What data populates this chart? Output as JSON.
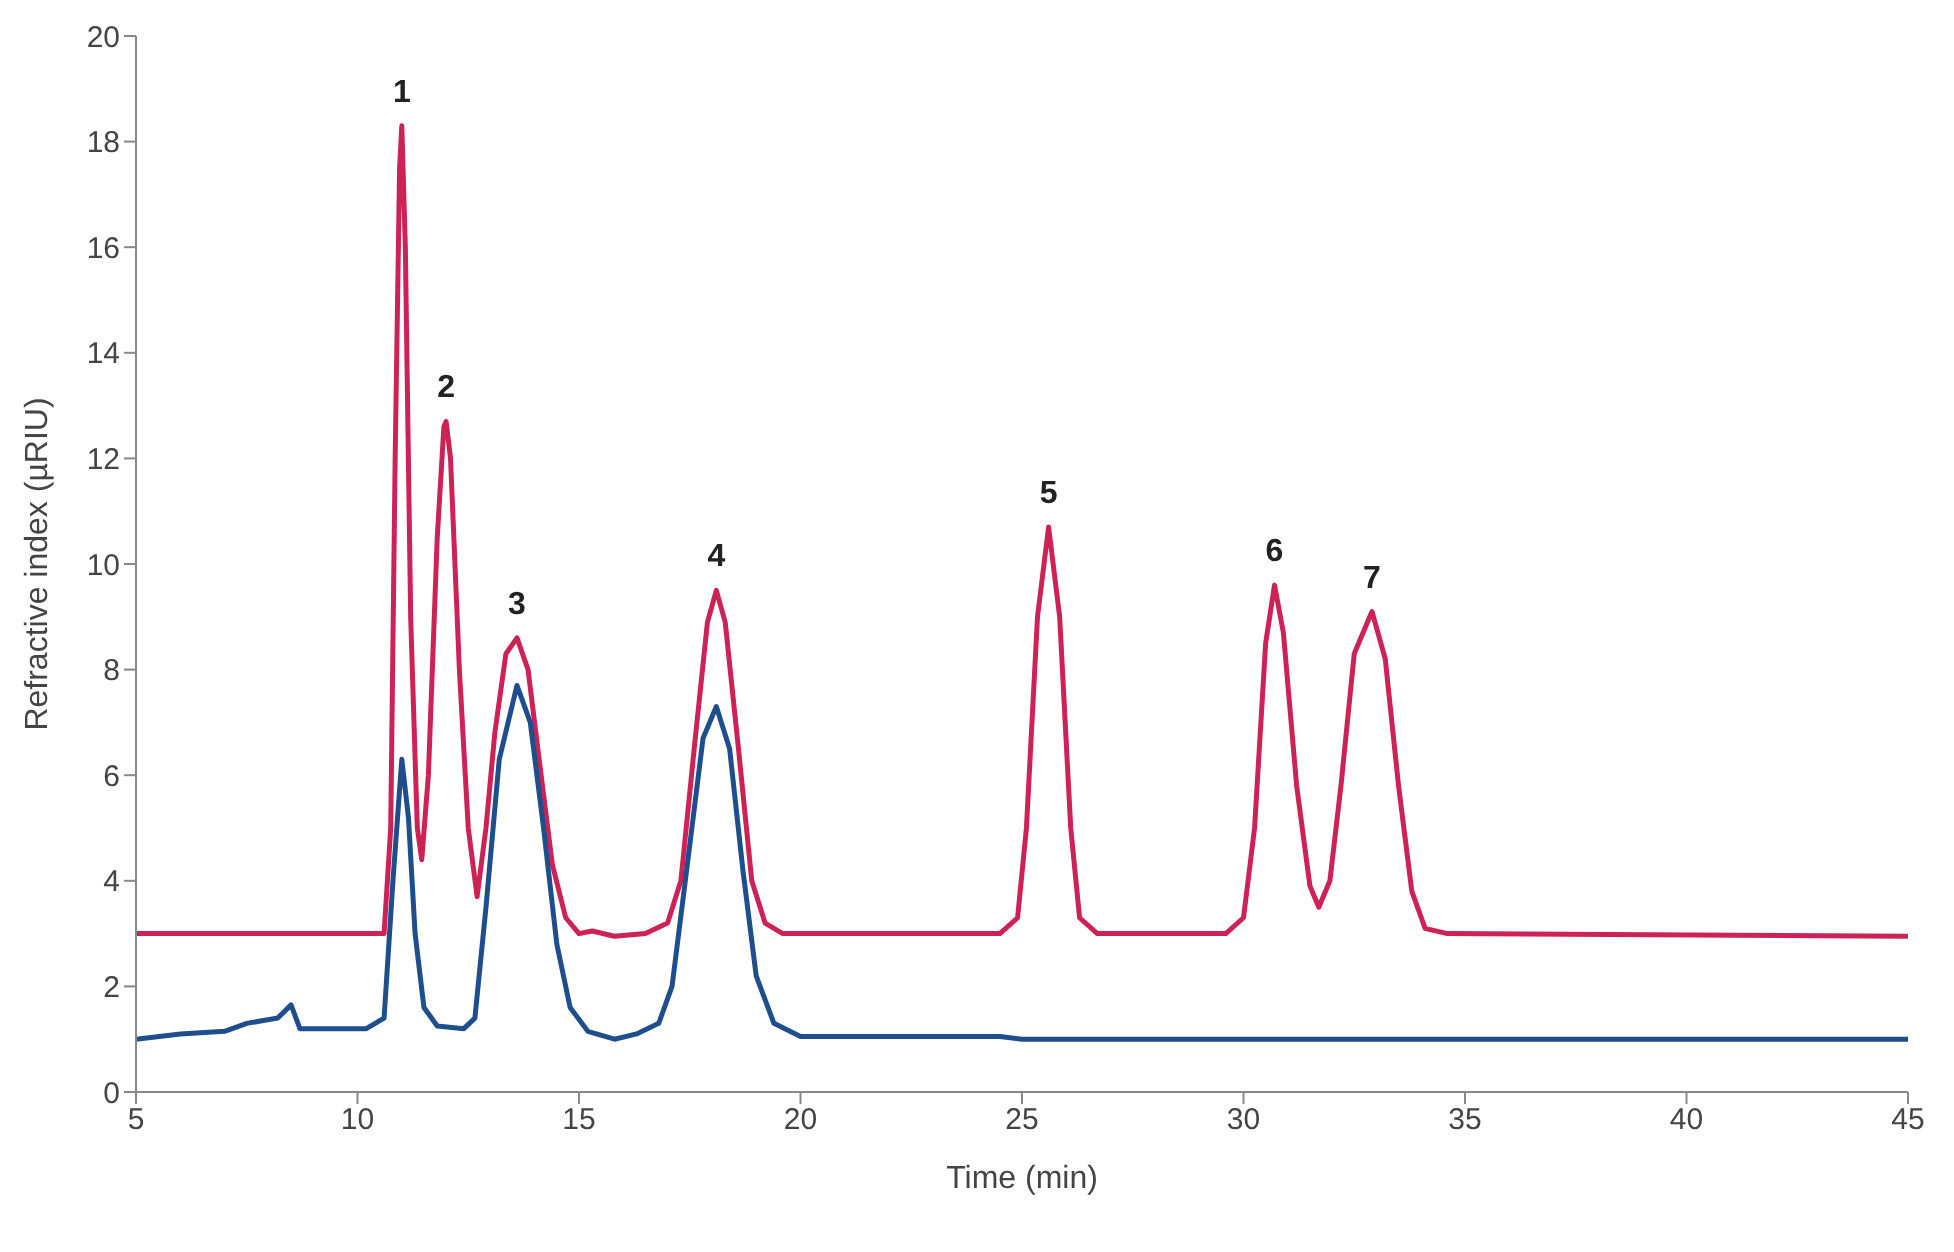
{
  "chart_data": {
    "type": "line",
    "xlabel": "Time (min)",
    "ylabel": "Refractive index (µRIU)",
    "xlim": [
      5,
      45
    ],
    "xticks": [
      5,
      10,
      15,
      20,
      25,
      30,
      35,
      40,
      45
    ],
    "ylim": [
      0,
      20
    ],
    "yticks": [
      0,
      2,
      4,
      6,
      8,
      10,
      12,
      14,
      16,
      18,
      20
    ],
    "line_style": "solid",
    "series": [
      {
        "color": "#cc2255",
        "x": [
          5,
          10.6,
          10.75,
          10.85,
          10.95,
          11.0,
          11.08,
          11.2,
          11.35,
          11.45,
          11.6,
          11.8,
          11.95,
          12.0,
          12.1,
          12.3,
          12.5,
          12.7,
          12.9,
          13.1,
          13.35,
          13.6,
          13.85,
          14.1,
          14.4,
          14.7,
          15,
          15.3,
          15.8,
          16.5,
          17,
          17.3,
          17.6,
          17.9,
          18.1,
          18.3,
          18.6,
          18.9,
          19.2,
          19.6,
          24.5,
          24.9,
          25.1,
          25.35,
          25.6,
          25.85,
          26.1,
          26.3,
          26.7,
          29.6,
          30.0,
          30.25,
          30.5,
          30.7,
          30.9,
          31.2,
          31.5,
          31.7,
          31.95,
          32.2,
          32.5,
          32.9,
          33.2,
          33.5,
          33.8,
          34.1,
          34.6,
          45
        ],
        "values": [
          3,
          3,
          5,
          12,
          17.5,
          18.3,
          16,
          9,
          5,
          4.4,
          6,
          10.5,
          12.6,
          12.7,
          12,
          8,
          5,
          3.7,
          5,
          6.8,
          8.3,
          8.6,
          8,
          6.3,
          4.3,
          3.3,
          3.0,
          3.05,
          2.95,
          3,
          3.2,
          4,
          6.5,
          8.9,
          9.5,
          8.9,
          6.5,
          4,
          3.2,
          3.0,
          3,
          3.3,
          5,
          9,
          10.7,
          9,
          5,
          3.3,
          3.0,
          3,
          3.3,
          5,
          8.5,
          9.6,
          8.7,
          5.8,
          3.9,
          3.5,
          4,
          5.8,
          8.3,
          9.1,
          8.2,
          5.8,
          3.8,
          3.1,
          3.0,
          2.95
        ]
      },
      {
        "color": "#1f4e8c",
        "x": [
          5,
          6,
          7,
          7.5,
          8.2,
          8.5,
          8.7,
          10.2,
          10.6,
          10.8,
          11.0,
          11.15,
          11.3,
          11.5,
          11.8,
          12.4,
          12.65,
          12.9,
          13.2,
          13.6,
          13.9,
          14.2,
          14.5,
          14.8,
          15.2,
          15.8,
          16.3,
          16.8,
          17.1,
          17.4,
          17.8,
          18.1,
          18.4,
          18.7,
          19.0,
          19.4,
          20,
          24.5,
          25,
          45
        ],
        "values": [
          1.0,
          1.1,
          1.15,
          1.3,
          1.4,
          1.65,
          1.2,
          1.2,
          1.4,
          4,
          6.3,
          5.2,
          3,
          1.6,
          1.25,
          1.2,
          1.4,
          3.5,
          6.3,
          7.7,
          7,
          5,
          2.8,
          1.6,
          1.15,
          1.0,
          1.1,
          1.3,
          2,
          4,
          6.7,
          7.3,
          6.5,
          4.2,
          2.2,
          1.3,
          1.05,
          1.05,
          1.0,
          1.0
        ]
      }
    ],
    "annotations": [
      {
        "text": "1",
        "x": 11.0,
        "y": 18.3
      },
      {
        "text": "2",
        "x": 12.0,
        "y": 12.7
      },
      {
        "text": "3",
        "x": 13.6,
        "y": 8.6
      },
      {
        "text": "4",
        "x": 18.1,
        "y": 9.5
      },
      {
        "text": "5",
        "x": 25.6,
        "y": 10.7
      },
      {
        "text": "6",
        "x": 30.7,
        "y": 9.6
      },
      {
        "text": "7",
        "x": 32.9,
        "y": 9.1
      }
    ]
  }
}
